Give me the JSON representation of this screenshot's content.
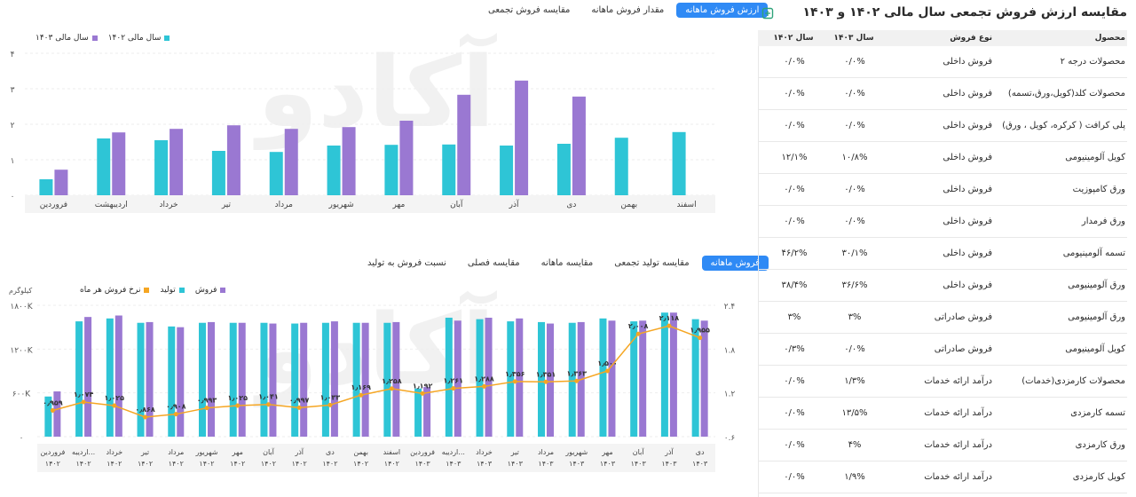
{
  "table": {
    "title": "مقایسه ارزش فروش تجمعی سال مالی ۱۴۰۲ و ۱۴۰۳",
    "icon": "export-icon",
    "headers": {
      "product": "محصول",
      "type": "نوع فروش",
      "y1403": "سال ۱۴۰۳",
      "y1402": "سال ۱۴۰۲"
    },
    "rows": [
      {
        "product": "محصولات درجه ۲",
        "type": "فروش داخلی",
        "y1403": "۰/۰%",
        "y1402": "۰/۰%"
      },
      {
        "product": "محصولات کلد(کویل،ورق،تسمه)",
        "type": "فروش داخلی",
        "y1403": "۰/۰%",
        "y1402": "۰/۰%"
      },
      {
        "product": "پلی کرافت ( کرکره، کویل ، ورق)",
        "type": "فروش داخلی",
        "y1403": "۰/۰%",
        "y1402": "۰/۰%"
      },
      {
        "product": "کویل آلومینیومی",
        "type": "فروش داخلی",
        "y1403": "۱۰/۸%",
        "y1402": "۱۲/۱%"
      },
      {
        "product": "ورق کامپوزیت",
        "type": "فروش داخلی",
        "y1403": "۰/۰%",
        "y1402": "۰/۰%"
      },
      {
        "product": "ورق فرمدار",
        "type": "فروش داخلی",
        "y1403": "۰/۰%",
        "y1402": "۰/۰%"
      },
      {
        "product": "تسمه آلومینیومی",
        "type": "فروش داخلی",
        "y1403": "۳۰/۱%",
        "y1402": "۴۶/۲%"
      },
      {
        "product": "ورق آلومینیومی",
        "type": "فروش داخلی",
        "y1403": "۳۶/۶%",
        "y1402": "۳۸/۴%"
      },
      {
        "product": "ورق آلومینیومی",
        "type": "فروش صادراتی",
        "y1403": "۳%",
        "y1402": "۳%"
      },
      {
        "product": "کویل آلومینیومی",
        "type": "فروش صادراتی",
        "y1403": "۰/۰%",
        "y1402": "۰/۳%"
      },
      {
        "product": "محصولات کارمزدی(خدمات)",
        "type": "درآمد ارائه خدمات",
        "y1403": "۱/۳%",
        "y1402": "۰/۰%"
      },
      {
        "product": "تسمه کارمزدی",
        "type": "درآمد ارائه خدمات",
        "y1403": "۱۳/۵%",
        "y1402": "۰/۰%"
      },
      {
        "product": "ورق کارمزدی",
        "type": "درآمد ارائه خدمات",
        "y1403": "۴%",
        "y1402": "۰/۰%"
      },
      {
        "product": "کویل کارمزدی",
        "type": "درآمد ارائه خدمات",
        "y1403": "۱/۹%",
        "y1402": "۰/۰%"
      }
    ]
  },
  "top_tabs": [
    {
      "label": "ارزش فروش ماهانه",
      "active": true
    },
    {
      "label": "مقدار فروش ماهانه",
      "active": false
    },
    {
      "label": "مقایسه فروش تجمعی",
      "active": false
    }
  ],
  "bottom_tabs": [
    {
      "label": "فروش ماهانه",
      "active": true
    },
    {
      "label": "مقایسه تولید تجمعی",
      "active": false
    },
    {
      "label": "مقایسه ماهانه",
      "active": false
    },
    {
      "label": "مقایسه فصلی",
      "active": false
    },
    {
      "label": "نسبت فروش به تولید",
      "active": false
    }
  ],
  "watermark": "آکادو",
  "colors": {
    "teal": "#2ec5d6",
    "purple": "#9a78d2",
    "orange": "#f5a623",
    "accent": "#2f8af5"
  },
  "chart_data": [
    {
      "type": "bar",
      "categories": [
        "فروردین",
        "اردیبهشت",
        "خرداد",
        "تیر",
        "مرداد",
        "شهریور",
        "مهر",
        "آبان",
        "آذر",
        "دی",
        "بهمن",
        "اسفند"
      ],
      "series": [
        {
          "name": "سال مالی ۱۴۰۲",
          "color": "#2ec5d6",
          "values": [
            0.45,
            1.6,
            1.55,
            1.25,
            1.22,
            1.4,
            1.42,
            1.43,
            1.4,
            1.45,
            1.62,
            1.78
          ]
        },
        {
          "name": "سال مالی ۱۴۰۳",
          "color": "#9a78d2",
          "values": [
            0.72,
            1.77,
            1.87,
            1.97,
            1.87,
            1.92,
            2.1,
            2.83,
            3.23,
            2.78,
            null,
            null
          ]
        }
      ],
      "yticks": [
        "۰",
        "۱",
        "۲",
        "۳",
        "۴"
      ],
      "ylim": [
        0,
        4
      ],
      "legend": "top-left"
    },
    {
      "type": "bar+line",
      "categories": [
        "فروردین ۱۴۰۲",
        "اردیبه... ۱۴۰۲",
        "خرداد ۱۴۰۲",
        "تیر ۱۴۰۲",
        "مرداد ۱۴۰۲",
        "شهریور ۱۴۰۲",
        "مهر ۱۴۰۲",
        "آبان ۱۴۰۲",
        "آذر ۱۴۰۲",
        "دی ۱۴۰۲",
        "بهمن ۱۴۰۲",
        "اسفند ۱۴۰۲",
        "فروردین ۱۴۰۳",
        "اردیبه... ۱۴۰۳",
        "خرداد ۱۴۰۳",
        "تیر ۱۴۰۳",
        "مرداد ۱۴۰۳",
        "شهریور ۱۴۰۳",
        "مهر ۱۴۰۳",
        "آبان ۱۴۰۳",
        "آذر ۱۴۰۳",
        "دی ۱۴۰۳"
      ],
      "series": [
        {
          "name": "تولید",
          "color": "#2ec5d6",
          "values": [
            550,
            1580,
            1620,
            1560,
            1510,
            1560,
            1560,
            1560,
            1550,
            1560,
            1560,
            1560,
            660,
            1630,
            1610,
            1580,
            1570,
            1560,
            1620,
            1580,
            1700,
            1610
          ]
        },
        {
          "name": "فروش",
          "color": "#9a78d2",
          "values": [
            620,
            1640,
            1660,
            1570,
            1500,
            1570,
            1560,
            1550,
            1560,
            1580,
            1560,
            1570,
            680,
            1590,
            1630,
            1620,
            1550,
            1570,
            1590,
            1590,
            1700,
            1590
          ]
        },
        {
          "name": "نرخ فروش هر ماه",
          "color": "#f5a623",
          "axis": "right",
          "values": [
            0.959,
            1.074,
            1.025,
            0.868,
            0.908,
            0.993,
            1.025,
            1.041,
            0.997,
            1.033,
            1.169,
            1.258,
            1.192,
            1.261,
            1.288,
            1.356,
            1.351,
            1.363,
            1.5,
            2.008,
            2.118,
            1.955
          ]
        }
      ],
      "labels": [
        "۰٫۹۵۹",
        "۱٫۰۷۴",
        "۱٫۰۲۵",
        "۰٫۸۶۸",
        "۰٫۹۰۸",
        "۰٫۹۹۳",
        "۱٫۰۲۵",
        "۱٫۰۴۱",
        "۰٫۹۹۷",
        "۱٫۰۳۳",
        "۱٫۱۶۹",
        "۱٫۲۵۸",
        "۱٫۱۹۲",
        "۱٫۲۶۱",
        "۱٫۲۸۸",
        "۱٫۳۵۶",
        "۱٫۳۵۱",
        "۱٫۳۶۳",
        "۱٫۵۰۰",
        "۲٫۰۰۸",
        "۲٫۱۱۸",
        "۱٫۹۵۵"
      ],
      "yunit": "کیلوگرم",
      "yticks_left": [
        "۰",
        "۶۰۰K",
        "۱۲۰۰K",
        "۱۸۰۰K"
      ],
      "ylim_left": [
        0,
        1800
      ],
      "yticks_right": [
        "۰.۶",
        "۱.۲",
        "۱.۸",
        "۲.۴"
      ],
      "ylim_right": [
        0.6,
        2.4
      ],
      "legend": "top-left"
    }
  ]
}
